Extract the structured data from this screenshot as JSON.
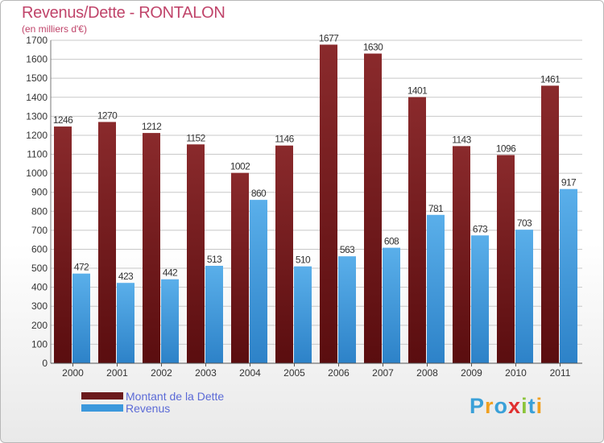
{
  "title": "Revenus/Dette - RONTALON",
  "subtitle": "(en milliers d'€)",
  "colors": {
    "title": "#c0446a",
    "debt": "#6b1a1c",
    "revenue": "#3c98dc",
    "legend_text": "#5b6ad6"
  },
  "legend": {
    "debt_label": "Montant de la Dette",
    "revenue_label": "Revenus"
  },
  "logo": {
    "text": "Proxiti"
  },
  "chart_data": {
    "type": "bar",
    "categories": [
      "2000",
      "2001",
      "2002",
      "2003",
      "2004",
      "2005",
      "2006",
      "2007",
      "2008",
      "2009",
      "2010",
      "2011"
    ],
    "series": [
      {
        "name": "Montant de la Dette",
        "values": [
          1246,
          1270,
          1212,
          1152,
          1002,
          1146,
          1677,
          1630,
          1401,
          1143,
          1096,
          1461
        ]
      },
      {
        "name": "Revenus",
        "values": [
          472,
          423,
          442,
          513,
          860,
          510,
          563,
          608,
          781,
          673,
          703,
          917
        ]
      }
    ],
    "ylim": [
      0,
      1700
    ],
    "ytick_step": 100,
    "grid": true,
    "legend_position": "bottom-left"
  }
}
